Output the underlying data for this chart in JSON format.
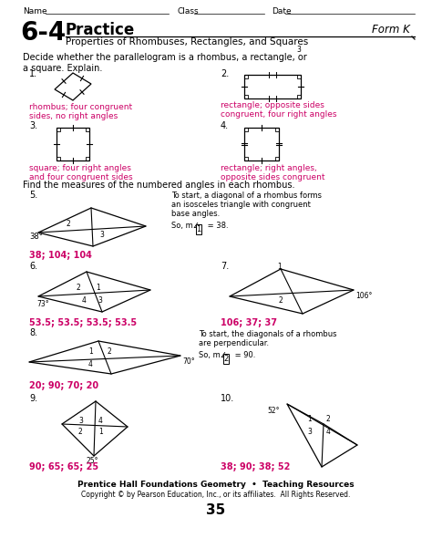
{
  "bg_color": "#ffffff",
  "text_color": "#000000",
  "answer_color": "#cc0066",
  "title_number": "6-4",
  "title_main": "Practice",
  "title_sub": "Properties of Rhombuses, Rectangles, and Squares",
  "form": "Form K",
  "header_name": "Name",
  "header_class": "Class",
  "header_date": "Date",
  "section1_instruction": "Decide whether the parallelogram is a rhombus, a rectangle, or\na square. Explain.",
  "section2_instruction": "Find the measures of the numbered angles in each rhombus.",
  "footer_pub": "Prentice Hall Foundations Geometry  •  Teaching Resources",
  "footer_copy": "Copyright © by Pearson Education, Inc., or its affiliates.  All Rights Reserved.",
  "footer_page": "35",
  "answers": {
    "1": "rhombus; four congruent\nsides, no right angles",
    "2": "rectangle; opposite sides\ncongruent, four right angles",
    "3": "square; four right angles\nand four congruent sides",
    "4": "rectangle; right angles,\nopposite sides congruent",
    "5": "38; 104; 104",
    "6": "53.5; 53.5; 53.5; 53.5",
    "7": "106; 37; 37",
    "8": "20; 90; 70; 20",
    "9": "90; 65; 65; 25",
    "10": "38; 90; 38; 52"
  }
}
